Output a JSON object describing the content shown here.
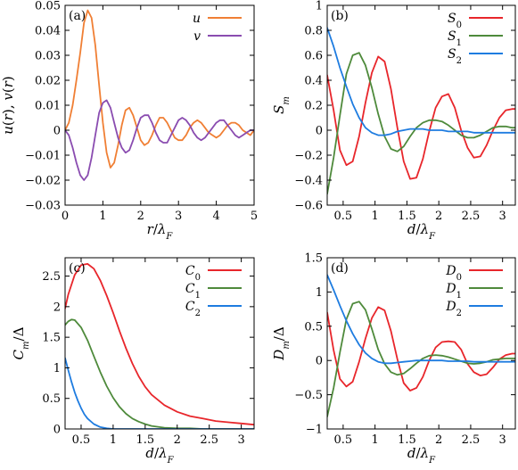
{
  "colors": {
    "orange": "#f07f34",
    "purple": "#8a4cb0",
    "red": "#e8262b",
    "green": "#4e8a3b",
    "blue": "#1e7ce0"
  },
  "chart_data": [
    {
      "type": "line",
      "panel": "(a)",
      "xlabel": "r/λF",
      "ylabel": "u(r), v(r)",
      "xlim": [
        0,
        5
      ],
      "ylim": [
        -0.03,
        0.05
      ],
      "xticks": [
        0,
        1,
        2,
        3,
        4,
        5
      ],
      "xtick_labels": [
        "0",
        "1",
        "2",
        "3",
        "4",
        "5"
      ],
      "yticks": [
        -0.03,
        -0.02,
        -0.01,
        0,
        0.01,
        0.02,
        0.03,
        0.04,
        0.05
      ],
      "ytick_labels": [
        "−0.03",
        "−0.02",
        "−0.01",
        "0",
        "0.01",
        "0.02",
        "0.03",
        "0.04",
        "0.05"
      ],
      "legend_position": "top-right",
      "grid": false,
      "series": [
        {
          "name": "u",
          "color": "orange",
          "x": [
            0,
            0.1,
            0.2,
            0.3,
            0.4,
            0.5,
            0.6,
            0.7,
            0.8,
            0.9,
            1.0,
            1.1,
            1.2,
            1.3,
            1.4,
            1.5,
            1.6,
            1.7,
            1.8,
            1.9,
            2.0,
            2.1,
            2.2,
            2.3,
            2.4,
            2.5,
            2.6,
            2.7,
            2.8,
            2.9,
            3.0,
            3.1,
            3.2,
            3.3,
            3.4,
            3.5,
            3.6,
            3.7,
            3.8,
            3.9,
            4.0,
            4.1,
            4.2,
            4.3,
            4.4,
            4.5,
            4.6,
            4.7,
            4.8,
            4.9,
            5.0
          ],
          "y": [
            0,
            0.003,
            0.01,
            0.02,
            0.031,
            0.043,
            0.048,
            0.045,
            0.034,
            0.018,
            0.003,
            -0.009,
            -0.015,
            -0.013,
            -0.006,
            0.002,
            0.008,
            0.009,
            0.006,
            0.001,
            -0.004,
            -0.006,
            -0.005,
            -0.002,
            0.002,
            0.005,
            0.005,
            0.003,
            0.0,
            -0.003,
            -0.004,
            -0.004,
            -0.002,
            0.001,
            0.003,
            0.004,
            0.003,
            0.001,
            -0.001,
            -0.002,
            -0.003,
            -0.002,
            0.0,
            0.002,
            0.003,
            0.003,
            0.002,
            0.0,
            -0.001,
            -0.002,
            0.0
          ]
        },
        {
          "name": "v",
          "color": "purple",
          "x": [
            0,
            0.1,
            0.2,
            0.3,
            0.4,
            0.5,
            0.6,
            0.7,
            0.8,
            0.9,
            1.0,
            1.1,
            1.2,
            1.3,
            1.4,
            1.5,
            1.6,
            1.7,
            1.8,
            1.9,
            2.0,
            2.1,
            2.2,
            2.3,
            2.4,
            2.5,
            2.6,
            2.7,
            2.8,
            2.9,
            3.0,
            3.1,
            3.2,
            3.3,
            3.4,
            3.5,
            3.6,
            3.7,
            3.8,
            3.9,
            4.0,
            4.1,
            4.2,
            4.3,
            4.4,
            4.5,
            4.6,
            4.7,
            4.8,
            4.9,
            5.0
          ],
          "y": [
            0,
            -0.002,
            -0.007,
            -0.013,
            -0.018,
            -0.02,
            -0.018,
            -0.011,
            -0.002,
            0.007,
            0.011,
            0.012,
            0.009,
            0.003,
            -0.003,
            -0.007,
            -0.009,
            -0.008,
            -0.004,
            0.001,
            0.005,
            0.006,
            0.006,
            0.003,
            -0.001,
            -0.004,
            -0.005,
            -0.005,
            -0.002,
            0.001,
            0.004,
            0.005,
            0.004,
            0.002,
            -0.001,
            -0.003,
            -0.004,
            -0.003,
            -0.001,
            0.001,
            0.003,
            0.004,
            0.004,
            0.002,
            0.0,
            -0.002,
            -0.003,
            -0.002,
            -0.001,
            0.0,
            0.0
          ]
        }
      ]
    },
    {
      "type": "line",
      "panel": "(b)",
      "xlabel": "d/λF",
      "ylabel": "Sm",
      "xlim": [
        0.25,
        3.2
      ],
      "ylim": [
        -0.6,
        1
      ],
      "xticks": [
        0.5,
        1,
        1.5,
        2,
        2.5,
        3
      ],
      "xtick_labels": [
        "0.5",
        "1",
        "1.5",
        "2",
        "2.5",
        "3"
      ],
      "yticks": [
        -0.6,
        -0.4,
        -0.2,
        0,
        0.2,
        0.4,
        0.6,
        0.8,
        1
      ],
      "ytick_labels": [
        "−0.6",
        "−0.4",
        "−0.2",
        "0",
        "0.2",
        "0.4",
        "0.6",
        "0.8",
        "1"
      ],
      "legend_position": "top-right",
      "grid": false,
      "series": [
        {
          "name": "S0",
          "color": "red",
          "x": [
            0.25,
            0.35,
            0.45,
            0.55,
            0.65,
            0.75,
            0.85,
            0.95,
            1.05,
            1.15,
            1.25,
            1.35,
            1.45,
            1.55,
            1.65,
            1.75,
            1.85,
            1.95,
            2.05,
            2.15,
            2.25,
            2.35,
            2.45,
            2.55,
            2.65,
            2.75,
            2.85,
            2.95,
            3.05,
            3.15,
            3.2
          ],
          "y": [
            0.44,
            0.16,
            -0.16,
            -0.28,
            -0.25,
            -0.05,
            0.22,
            0.46,
            0.59,
            0.55,
            0.33,
            0.02,
            -0.25,
            -0.39,
            -0.38,
            -0.23,
            -0.01,
            0.18,
            0.27,
            0.29,
            0.18,
            0.0,
            -0.14,
            -0.22,
            -0.21,
            -0.12,
            0.0,
            0.1,
            0.16,
            0.17,
            0.17
          ]
        },
        {
          "name": "S1",
          "color": "green",
          "x": [
            0.25,
            0.35,
            0.45,
            0.55,
            0.65,
            0.75,
            0.85,
            0.95,
            1.05,
            1.15,
            1.25,
            1.35,
            1.45,
            1.55,
            1.65,
            1.75,
            1.85,
            1.95,
            2.05,
            2.15,
            2.25,
            2.35,
            2.45,
            2.55,
            2.65,
            2.75,
            2.85,
            2.95,
            3.05,
            3.15,
            3.2
          ],
          "y": [
            -0.51,
            -0.22,
            0.12,
            0.45,
            0.6,
            0.62,
            0.52,
            0.34,
            0.13,
            -0.05,
            -0.15,
            -0.17,
            -0.13,
            -0.05,
            0.02,
            0.06,
            0.08,
            0.08,
            0.07,
            0.04,
            0.0,
            -0.04,
            -0.06,
            -0.06,
            -0.04,
            -0.01,
            0.02,
            0.03,
            0.03,
            0.02,
            0.02
          ]
        },
        {
          "name": "S2",
          "color": "blue",
          "x": [
            0.25,
            0.35,
            0.45,
            0.55,
            0.65,
            0.75,
            0.85,
            0.95,
            1.05,
            1.15,
            1.25,
            1.35,
            1.45,
            1.55,
            1.65,
            1.75,
            1.85,
            1.95,
            2.05,
            2.15,
            2.25,
            2.35,
            2.45,
            2.55,
            2.65,
            2.75,
            2.85,
            2.95,
            3.05,
            3.15,
            3.2
          ],
          "y": [
            0.82,
            0.67,
            0.5,
            0.35,
            0.21,
            0.1,
            0.02,
            -0.02,
            -0.04,
            -0.04,
            -0.03,
            -0.01,
            0.0,
            0.01,
            0.01,
            0.01,
            0.0,
            0.0,
            0.0,
            -0.01,
            -0.01,
            -0.01,
            -0.01,
            -0.02,
            -0.02,
            -0.02,
            -0.02,
            -0.02,
            -0.02,
            -0.02,
            -0.02
          ]
        }
      ]
    },
    {
      "type": "line",
      "panel": "(c)",
      "xlabel": "d/λF",
      "ylabel": "Cm/Δ",
      "xlim": [
        0.25,
        3.2
      ],
      "ylim": [
        0,
        2.8
      ],
      "xticks": [
        0.5,
        1,
        1.5,
        2,
        2.5,
        3
      ],
      "xtick_labels": [
        "0.5",
        "1",
        "1.5",
        "2",
        "2.5",
        "3"
      ],
      "yticks": [
        0,
        0.5,
        1,
        1.5,
        2,
        2.5
      ],
      "ytick_labels": [
        "0",
        "0.5",
        "1",
        "1.5",
        "2",
        "2.5"
      ],
      "legend_position": "top-right",
      "grid": false,
      "series": [
        {
          "name": "C0",
          "color": "red",
          "x": [
            0.25,
            0.3,
            0.4,
            0.5,
            0.6,
            0.7,
            0.8,
            0.9,
            1.0,
            1.1,
            1.2,
            1.3,
            1.4,
            1.5,
            1.6,
            1.8,
            2.0,
            2.2,
            2.4,
            2.6,
            2.8,
            3.0,
            3.2
          ],
          "y": [
            1.97,
            2.2,
            2.52,
            2.68,
            2.7,
            2.62,
            2.43,
            2.18,
            1.9,
            1.6,
            1.32,
            1.07,
            0.86,
            0.69,
            0.56,
            0.39,
            0.28,
            0.21,
            0.17,
            0.13,
            0.11,
            0.09,
            0.07
          ]
        },
        {
          "name": "C1",
          "color": "green",
          "x": [
            0.25,
            0.3,
            0.35,
            0.4,
            0.5,
            0.6,
            0.7,
            0.8,
            0.9,
            1.0,
            1.1,
            1.2,
            1.3,
            1.4,
            1.5,
            1.6,
            1.8,
            2.0,
            2.2,
            2.4,
            2.6,
            2.8,
            3.0,
            3.2
          ],
          "y": [
            1.7,
            1.76,
            1.79,
            1.78,
            1.66,
            1.45,
            1.19,
            0.93,
            0.7,
            0.51,
            0.36,
            0.25,
            0.17,
            0.12,
            0.08,
            0.05,
            0.02,
            0.01,
            0.01,
            0.0,
            0.0,
            0.0,
            0.0,
            0.0
          ]
        },
        {
          "name": "C2",
          "color": "blue",
          "x": [
            0.25,
            0.3,
            0.35,
            0.4,
            0.45,
            0.5,
            0.55,
            0.6,
            0.7,
            0.8,
            0.9,
            1.0,
            1.2,
            1.4,
            1.6,
            2.0,
            2.5,
            3.0,
            3.2
          ],
          "y": [
            1.16,
            0.96,
            0.77,
            0.6,
            0.46,
            0.34,
            0.24,
            0.17,
            0.08,
            0.03,
            0.01,
            0.0,
            0.0,
            0.0,
            0.0,
            0.0,
            0.0,
            0.0,
            0.0
          ]
        }
      ]
    },
    {
      "type": "line",
      "panel": "(d)",
      "xlabel": "d/λF",
      "ylabel": "Dm/Δ",
      "xlim": [
        0.25,
        3.2
      ],
      "ylim": [
        -1,
        1.5
      ],
      "xticks": [
        0.5,
        1,
        1.5,
        2,
        2.5,
        3
      ],
      "xtick_labels": [
        "0.5",
        "1",
        "1.5",
        "2",
        "2.5",
        "3"
      ],
      "yticks": [
        -1,
        -0.5,
        0,
        0.5,
        1,
        1.5
      ],
      "ytick_labels": [
        "−1",
        "−0.5",
        "0",
        "0.5",
        "1",
        "1.5"
      ],
      "legend_position": "top-right",
      "grid": false,
      "series": [
        {
          "name": "D0",
          "color": "red",
          "x": [
            0.25,
            0.35,
            0.45,
            0.55,
            0.65,
            0.75,
            0.85,
            0.95,
            1.05,
            1.15,
            1.25,
            1.35,
            1.45,
            1.55,
            1.65,
            1.75,
            1.85,
            1.95,
            2.05,
            2.15,
            2.25,
            2.35,
            2.45,
            2.55,
            2.65,
            2.75,
            2.85,
            2.95,
            3.05,
            3.15,
            3.2
          ],
          "y": [
            0.7,
            0.15,
            -0.27,
            -0.38,
            -0.31,
            -0.02,
            0.32,
            0.62,
            0.78,
            0.73,
            0.43,
            0.02,
            -0.33,
            -0.44,
            -0.4,
            -0.24,
            0.0,
            0.19,
            0.27,
            0.28,
            0.27,
            0.16,
            -0.05,
            -0.17,
            -0.22,
            -0.2,
            -0.1,
            0.02,
            0.08,
            0.1,
            0.1
          ]
        },
        {
          "name": "D1",
          "color": "green",
          "x": [
            0.25,
            0.35,
            0.45,
            0.55,
            0.65,
            0.75,
            0.85,
            0.95,
            1.05,
            1.15,
            1.25,
            1.35,
            1.45,
            1.55,
            1.65,
            1.75,
            1.85,
            1.95,
            2.05,
            2.15,
            2.25,
            2.35,
            2.45,
            2.55,
            2.65,
            2.75,
            2.85,
            2.95,
            3.05,
            3.15,
            3.2
          ],
          "y": [
            -0.82,
            -0.4,
            0.12,
            0.6,
            0.83,
            0.86,
            0.74,
            0.46,
            0.16,
            -0.05,
            -0.17,
            -0.21,
            -0.19,
            -0.12,
            -0.04,
            0.03,
            0.07,
            0.08,
            0.07,
            0.05,
            0.02,
            -0.01,
            -0.04,
            -0.05,
            -0.04,
            -0.02,
            0.01,
            0.02,
            0.03,
            0.03,
            0.03
          ]
        },
        {
          "name": "D2",
          "color": "blue",
          "x": [
            0.25,
            0.35,
            0.45,
            0.55,
            0.65,
            0.75,
            0.85,
            0.95,
            1.05,
            1.15,
            1.25,
            1.35,
            1.45,
            1.55,
            1.65,
            1.75,
            1.85,
            1.95,
            2.05,
            2.15,
            2.25,
            2.35,
            2.45,
            2.55,
            2.65,
            2.75,
            2.85,
            2.95,
            3.05,
            3.15,
            3.2
          ],
          "y": [
            1.25,
            1.03,
            0.8,
            0.58,
            0.39,
            0.23,
            0.11,
            0.03,
            -0.02,
            -0.04,
            -0.04,
            -0.03,
            -0.02,
            -0.01,
            0.0,
            0.0,
            0.0,
            0.0,
            0.0,
            -0.01,
            -0.01,
            -0.01,
            -0.01,
            -0.02,
            -0.02,
            -0.02,
            -0.02,
            -0.02,
            -0.02,
            -0.02,
            -0.02
          ]
        }
      ]
    }
  ]
}
